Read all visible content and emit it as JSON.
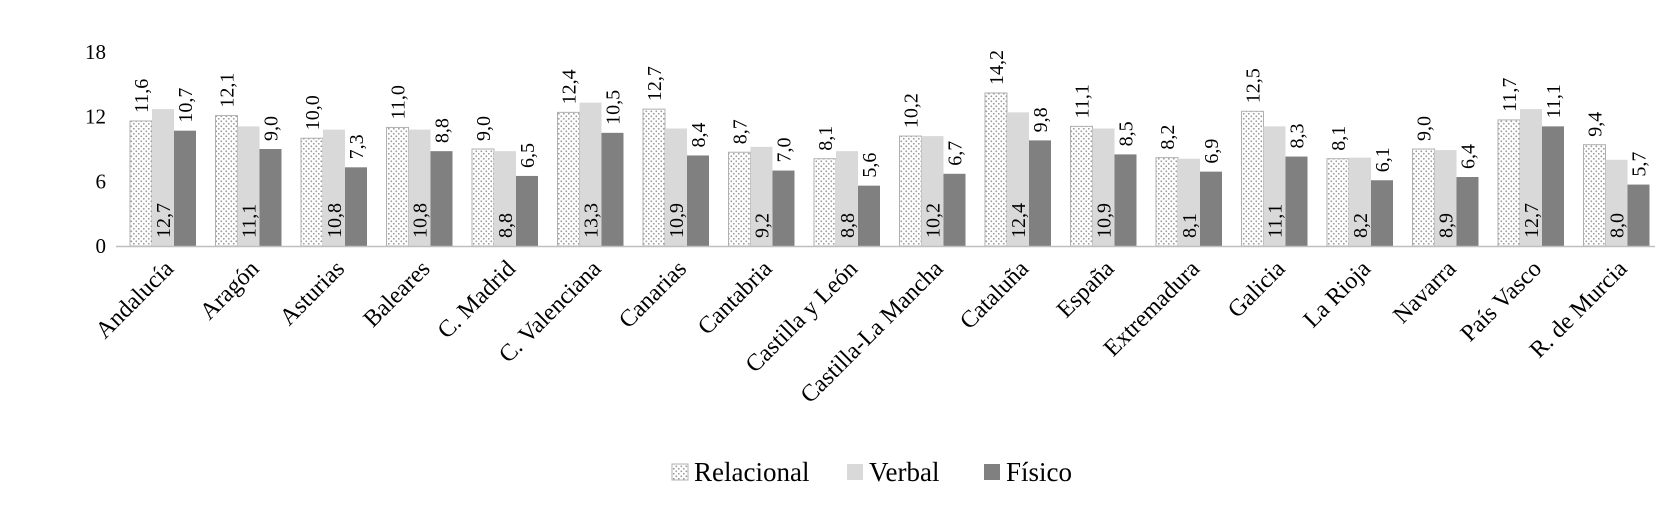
{
  "chart_data": {
    "type": "bar",
    "title": "",
    "xlabel": "",
    "ylabel": "",
    "ylim": [
      0,
      18
    ],
    "yticks": [
      "0",
      "6",
      "12",
      "18"
    ],
    "grid": false,
    "legend_position": "bottom-center",
    "categories": [
      "Andalucía",
      "Aragón",
      "Asturias",
      "Baleares",
      "C. Madrid",
      "C. Valenciana",
      "Canarias",
      "Cantabria",
      "Castilla y León",
      "Castilla-La Mancha",
      "Cataluña",
      "España",
      "Extremadura",
      "Galicia",
      "La Rioja",
      "Navarra",
      "País Vasco",
      "R. de Murcia"
    ],
    "series": [
      {
        "name": "Relacional",
        "color": "#ffffff",
        "pattern": "dotted",
        "values": [
          11.6,
          12.1,
          10.0,
          11.0,
          9.0,
          12.4,
          12.7,
          8.7,
          8.1,
          10.2,
          14.2,
          11.1,
          8.2,
          12.5,
          8.1,
          9.0,
          11.7,
          9.4
        ],
        "labels": [
          "11,6",
          "12,1",
          "10,0",
          "11,0",
          "9,0",
          "12,4",
          "12,7",
          "8,7",
          "8,1",
          "10,2",
          "14,2",
          "11,1",
          "8,2",
          "12,5",
          "8,1",
          "9,0",
          "11,7",
          "9,4"
        ]
      },
      {
        "name": "Verbal",
        "color": "#d9d9d9",
        "pattern": "solid",
        "values": [
          12.7,
          11.1,
          10.8,
          10.8,
          8.8,
          13.3,
          10.9,
          9.2,
          8.8,
          10.2,
          12.4,
          10.9,
          8.1,
          11.1,
          8.2,
          8.9,
          12.7,
          8.0
        ],
        "labels": [
          "12,7",
          "11,1",
          "10,8",
          "10,8",
          "8,8",
          "13,3",
          "10,9",
          "9,2",
          "8,8",
          "10,2",
          "12,4",
          "10,9",
          "8,1",
          "11,1",
          "8,2",
          "8,9",
          "12,7",
          "8,0"
        ]
      },
      {
        "name": "Físico",
        "color": "#808080",
        "pattern": "solid",
        "values": [
          10.7,
          9.0,
          7.3,
          8.8,
          6.5,
          10.5,
          8.4,
          7.0,
          5.6,
          6.7,
          9.8,
          8.5,
          6.9,
          8.3,
          6.1,
          6.4,
          11.1,
          5.7
        ],
        "labels": [
          "10,7",
          "9,0",
          "7,3",
          "8,8",
          "6,5",
          "10,5",
          "8,4",
          "7,0",
          "5,6",
          "6,7",
          "9,8",
          "8,5",
          "6,9",
          "8,3",
          "6,1",
          "6,4",
          "11,1",
          "5,7"
        ]
      }
    ]
  }
}
